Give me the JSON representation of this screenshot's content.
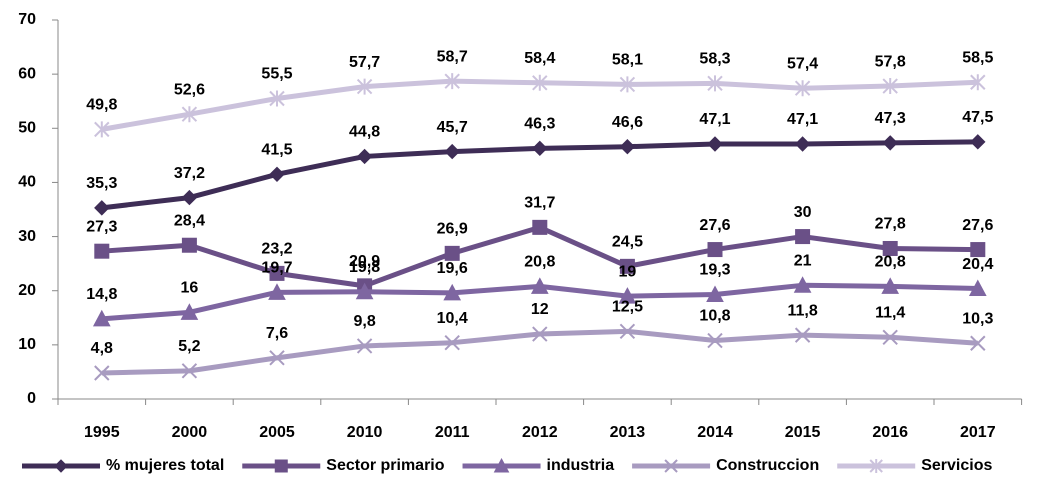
{
  "chart_data": {
    "type": "line",
    "categories": [
      "1995",
      "2000",
      "2005",
      "2010",
      "2011",
      "2012",
      "2013",
      "2014",
      "2015",
      "2016",
      "2017"
    ],
    "ylim": [
      0,
      70
    ],
    "yticks": [
      0,
      10,
      20,
      30,
      40,
      50,
      60,
      70
    ],
    "legend": "bottom",
    "series": [
      {
        "name": "% mujeres total",
        "color": "#3e2d56",
        "marker": "diamond",
        "values": [
          35.3,
          37.2,
          41.5,
          44.8,
          45.7,
          46.3,
          46.6,
          47.1,
          47.1,
          47.3,
          47.5
        ],
        "value_labels": [
          "35,3",
          "37,2",
          "41,5",
          "44,8",
          "45,7",
          "46,3",
          "46,6",
          "47,1",
          "47,1",
          "47,3",
          "47,5"
        ]
      },
      {
        "name": "Sector primario",
        "color": "#6a5087",
        "marker": "square",
        "values": [
          27.3,
          28.4,
          23.2,
          20.9,
          26.9,
          31.7,
          24.5,
          27.6,
          30,
          27.8,
          27.6
        ],
        "value_labels": [
          "27,3",
          "28,4",
          "23,2",
          "20,9",
          "26,9",
          "31,7",
          "24,5",
          "27,6",
          "30",
          "27,8",
          "27,6"
        ]
      },
      {
        "name": "industria",
        "color": "#7e66a1",
        "marker": "triangle",
        "values": [
          14.8,
          16,
          19.7,
          19.8,
          19.6,
          20.8,
          19,
          19.3,
          21,
          20.8,
          20.4
        ],
        "value_labels": [
          "14,8",
          "16",
          "19,7",
          "19,8",
          "19,6",
          "20,8",
          "19",
          "19,3",
          "21",
          "20,8",
          "20,4"
        ]
      },
      {
        "name": "Construccion",
        "color": "#a89bc0",
        "marker": "x",
        "values": [
          4.8,
          5.2,
          7.6,
          9.8,
          10.4,
          12,
          12.5,
          10.8,
          11.8,
          11.4,
          10.3
        ],
        "value_labels": [
          "4,8",
          "5,2",
          "7,6",
          "9,8",
          "10,4",
          "12",
          "12,5",
          "10,8",
          "11,8",
          "11,4",
          "10,3"
        ]
      },
      {
        "name": "Servicios",
        "color": "#cbc2dc",
        "marker": "asterisk",
        "values": [
          49.8,
          52.6,
          55.5,
          57.7,
          58.7,
          58.4,
          58.1,
          58.3,
          57.4,
          57.8,
          58.5
        ],
        "value_labels": [
          "49,8",
          "52,6",
          "55,5",
          "57,7",
          "58,7",
          "58,4",
          "58,1",
          "58,3",
          "57,4",
          "57,8",
          "58,5"
        ]
      }
    ]
  }
}
